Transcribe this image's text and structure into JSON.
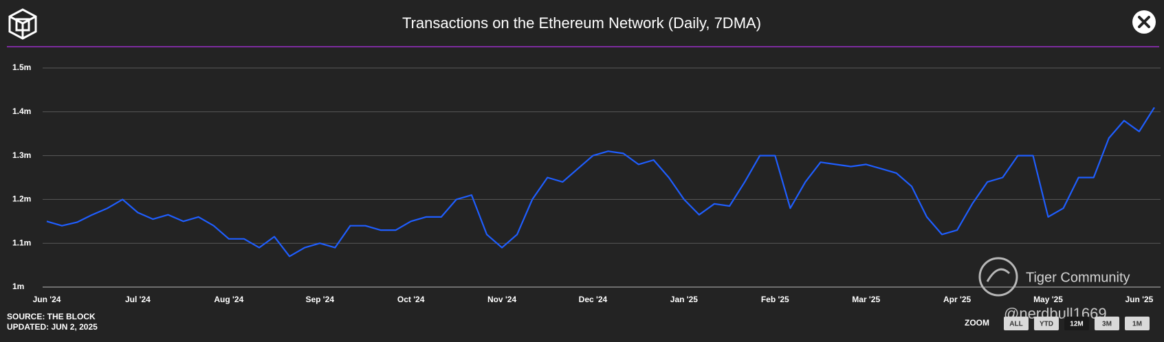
{
  "chart_data": {
    "type": "line",
    "title": "Transactions on the Ethereum Network (Daily, 7DMA)",
    "categories": [
      "Jun '24",
      null,
      null,
      null,
      null,
      null,
      "Jul '24",
      null,
      null,
      null,
      null,
      null,
      "Aug '24",
      null,
      null,
      null,
      null,
      null,
      "Sep '24",
      null,
      null,
      null,
      null,
      null,
      "Oct '24",
      null,
      null,
      null,
      null,
      null,
      "Nov '24",
      null,
      null,
      null,
      null,
      null,
      "Dec '24",
      null,
      null,
      null,
      null,
      null,
      "Jan '25",
      null,
      null,
      null,
      null,
      null,
      "Feb '25",
      null,
      null,
      null,
      null,
      null,
      "Mar '25",
      null,
      null,
      null,
      null,
      null,
      "Apr '25",
      null,
      null,
      null,
      null,
      null,
      "May '25",
      null,
      null,
      null,
      null,
      null,
      "Jun '25",
      null
    ],
    "series": [
      {
        "name": "Transactions",
        "color": "#1f5eff",
        "values": [
          1150000,
          1140000,
          1148000,
          1165000,
          1180000,
          1200000,
          1170000,
          1155000,
          1165000,
          1150000,
          1160000,
          1140000,
          1110000,
          1110000,
          1090000,
          1115000,
          1070000,
          1090000,
          1100000,
          1090000,
          1140000,
          1140000,
          1130000,
          1130000,
          1150000,
          1160000,
          1160000,
          1200000,
          1210000,
          1120000,
          1090000,
          1120000,
          1200000,
          1250000,
          1240000,
          1270000,
          1300000,
          1310000,
          1305000,
          1280000,
          1290000,
          1250000,
          1200000,
          1165000,
          1190000,
          1185000,
          1240000,
          1300000,
          1300000,
          1180000,
          1240000,
          1285000,
          1280000,
          1275000,
          1280000,
          1270000,
          1260000,
          1230000,
          1160000,
          1120000,
          1130000,
          1190000,
          1240000,
          1250000,
          1300000,
          1300000,
          1160000,
          1180000,
          1250000,
          1250000,
          1340000,
          1380000,
          1355000,
          1410000
        ]
      }
    ],
    "ylim": [
      1000000,
      1500000
    ],
    "yticks": [
      {
        "value": 1000000,
        "label": "1m"
      },
      {
        "value": 1100000,
        "label": "1.1m"
      },
      {
        "value": 1200000,
        "label": "1.2m"
      },
      {
        "value": 1300000,
        "label": "1.3m"
      },
      {
        "value": 1400000,
        "label": "1.4m"
      },
      {
        "value": 1500000,
        "label": "1.5m"
      }
    ],
    "grid": true,
    "source": "SOURCE: THE BLOCK",
    "updated": "UPDATED: JUN 2, 2025",
    "zoom_label": "ZOOM",
    "zoom_options": [
      "ALL",
      "YTD",
      "12M",
      "3M",
      "1M"
    ],
    "watermark": "Tiger Community",
    "watermark_user": "@nerdbull1669"
  }
}
